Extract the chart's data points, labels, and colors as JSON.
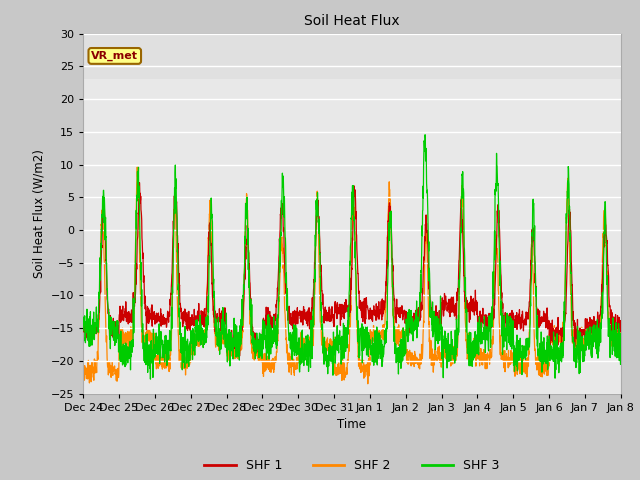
{
  "title": "Soil Heat Flux",
  "ylabel": "Soil Heat Flux (W/m2)",
  "xlabel": "Time",
  "ylim": [
    -25,
    30
  ],
  "yticks": [
    -25,
    -20,
    -15,
    -10,
    -5,
    0,
    5,
    10,
    15,
    20,
    25,
    30
  ],
  "colors": {
    "SHF 1": "#cc0000",
    "SHF 2": "#ff8800",
    "SHF 3": "#00cc00"
  },
  "legend_label": "VR_met",
  "plot_bg": "#e0e0e0",
  "fig_bg": "#c8c8c8",
  "band_light": "#e8e8e8",
  "x_tick_labels": [
    "Dec 24",
    "Dec 25",
    "Dec 26",
    "Dec 27",
    "Dec 28",
    "Dec 29",
    "Dec 30",
    "Dec 31",
    "Jan 1",
    "Jan 2",
    "Jan 3",
    "Jan 4",
    "Jan 5",
    "Jan 6",
    "Jan 7",
    "Jan 8"
  ],
  "num_days": 15,
  "points_per_day": 144
}
